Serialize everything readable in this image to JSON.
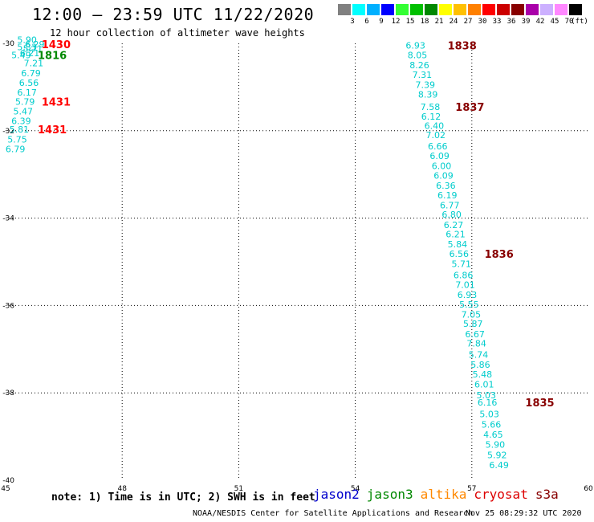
{
  "title": "12:00 – 23:59 UTC 11/22/2020",
  "subtitle": "12 hour collection of altimeter wave heights",
  "legend": {
    "unit": "(ft)",
    "swatches": [
      {
        "color": "#808080",
        "label": "3"
      },
      {
        "color": "#00ffff",
        "label": "6"
      },
      {
        "color": "#00b0ff",
        "label": "9"
      },
      {
        "color": "#0000ff",
        "label": "12"
      },
      {
        "color": "#33ff33",
        "label": "15"
      },
      {
        "color": "#00c000",
        "label": "18"
      },
      {
        "color": "#008800",
        "label": "21"
      },
      {
        "color": "#ffff00",
        "label": "24"
      },
      {
        "color": "#ffc000",
        "label": "27"
      },
      {
        "color": "#ff8000",
        "label": "30"
      },
      {
        "color": "#ff0000",
        "label": "33"
      },
      {
        "color": "#cc0000",
        "label": "36"
      },
      {
        "color": "#880000",
        "label": "39"
      },
      {
        "color": "#aa00aa",
        "label": "42"
      },
      {
        "color": "#ccb0ff",
        "label": "45"
      },
      {
        "color": "#ff88ff",
        "label": "70"
      },
      {
        "color": "#000000",
        "label": ""
      }
    ]
  },
  "chart_data": {
    "type": "scatter",
    "xlim": [
      45,
      60
    ],
    "ylim": [
      -40,
      -30
    ],
    "x_ticks": [
      "45",
      "48",
      "51",
      "54",
      "57",
      "60"
    ],
    "y_ticks": [
      "-30",
      "-32",
      "-34",
      "-36",
      "-38",
      "-40"
    ],
    "grid": "dotted",
    "series": [
      {
        "color": "#00cccc",
        "points": [
          {
            "x": 45.55,
            "y": -29.92,
            "label": "5.90"
          },
          {
            "x": 45.55,
            "y": -30.08,
            "label": "5.33"
          },
          {
            "x": 45.75,
            "y": -30.02,
            "label": "6.29"
          },
          {
            "x": 45.7,
            "y": -30.12,
            "label": "5.71"
          },
          {
            "x": 45.4,
            "y": -30.27,
            "label": "5.49"
          },
          {
            "x": 45.62,
            "y": -30.22,
            "label": "6.21"
          },
          {
            "x": 45.72,
            "y": -30.45,
            "label": "7.21"
          },
          {
            "x": 45.65,
            "y": -30.68,
            "label": "6.79"
          },
          {
            "x": 45.6,
            "y": -30.9,
            "label": "6.56"
          },
          {
            "x": 45.55,
            "y": -31.12,
            "label": "6.17"
          },
          {
            "x": 45.5,
            "y": -31.33,
            "label": "5.79"
          },
          {
            "x": 45.45,
            "y": -31.55,
            "label": "5.47"
          },
          {
            "x": 45.4,
            "y": -31.77,
            "label": "6.39"
          },
          {
            "x": 45.35,
            "y": -31.97,
            "label": "5.81"
          },
          {
            "x": 45.3,
            "y": -32.2,
            "label": "5.75"
          },
          {
            "x": 45.25,
            "y": -32.42,
            "label": "6.79"
          },
          {
            "x": 55.55,
            "y": -30.05,
            "label": "6.93"
          },
          {
            "x": 55.6,
            "y": -30.27,
            "label": "8.05"
          },
          {
            "x": 55.65,
            "y": -30.5,
            "label": "8.26"
          },
          {
            "x": 55.72,
            "y": -30.72,
            "label": "7.31"
          },
          {
            "x": 55.8,
            "y": -30.95,
            "label": "7.39"
          },
          {
            "x": 55.87,
            "y": -31.17,
            "label": "8.39"
          },
          {
            "x": 55.93,
            "y": -31.45,
            "label": "7.58"
          },
          {
            "x": 55.95,
            "y": -31.67,
            "label": "6.12"
          },
          {
            "x": 56.03,
            "y": -31.88,
            "label": "6.40"
          },
          {
            "x": 56.07,
            "y": -32.1,
            "label": "7.02"
          },
          {
            "x": 56.12,
            "y": -32.35,
            "label": "6.66"
          },
          {
            "x": 56.17,
            "y": -32.57,
            "label": "6.09"
          },
          {
            "x": 56.22,
            "y": -32.8,
            "label": "6.00"
          },
          {
            "x": 56.27,
            "y": -33.02,
            "label": "6.09"
          },
          {
            "x": 56.33,
            "y": -33.25,
            "label": "6.36"
          },
          {
            "x": 56.37,
            "y": -33.47,
            "label": "6.19"
          },
          {
            "x": 56.43,
            "y": -33.7,
            "label": "6.77"
          },
          {
            "x": 56.48,
            "y": -33.92,
            "label": "6.80"
          },
          {
            "x": 56.53,
            "y": -34.15,
            "label": "6.27"
          },
          {
            "x": 56.58,
            "y": -34.37,
            "label": "6.21"
          },
          {
            "x": 56.63,
            "y": -34.6,
            "label": "5.84"
          },
          {
            "x": 56.67,
            "y": -34.82,
            "label": "6.56"
          },
          {
            "x": 56.73,
            "y": -35.05,
            "label": "5.71"
          },
          {
            "x": 56.78,
            "y": -35.3,
            "label": "6.86"
          },
          {
            "x": 56.83,
            "y": -35.52,
            "label": "7.01"
          },
          {
            "x": 56.88,
            "y": -35.75,
            "label": "6.93"
          },
          {
            "x": 56.93,
            "y": -35.97,
            "label": "5.55"
          },
          {
            "x": 56.98,
            "y": -36.2,
            "label": "7.05"
          },
          {
            "x": 57.03,
            "y": -36.42,
            "label": "5.87"
          },
          {
            "x": 57.08,
            "y": -36.65,
            "label": "6.67"
          },
          {
            "x": 57.12,
            "y": -36.87,
            "label": "7.84"
          },
          {
            "x": 57.17,
            "y": -37.12,
            "label": "5.74"
          },
          {
            "x": 57.22,
            "y": -37.35,
            "label": "5.86"
          },
          {
            "x": 57.27,
            "y": -37.57,
            "label": "5.48"
          },
          {
            "x": 57.32,
            "y": -37.8,
            "label": "6.01"
          },
          {
            "x": 57.37,
            "y": -38.05,
            "label": "5.03"
          },
          {
            "x": 57.4,
            "y": -38.22,
            "label": "6.16"
          },
          {
            "x": 57.45,
            "y": -38.48,
            "label": "5.03"
          },
          {
            "x": 57.5,
            "y": -38.72,
            "label": "5.66"
          },
          {
            "x": 57.55,
            "y": -38.95,
            "label": "4.65"
          },
          {
            "x": 57.6,
            "y": -39.18,
            "label": "5.90"
          },
          {
            "x": 57.65,
            "y": -39.42,
            "label": "5.92"
          },
          {
            "x": 57.7,
            "y": -39.65,
            "label": "6.49"
          }
        ]
      }
    ],
    "time_labels": [
      {
        "x": 46.3,
        "y": -30.02,
        "label": "1430",
        "color": "#ff0000"
      },
      {
        "x": 46.2,
        "y": -30.27,
        "label": "1816",
        "color": "#008800"
      },
      {
        "x": 46.3,
        "y": -31.33,
        "label": "1431",
        "color": "#ff0000"
      },
      {
        "x": 46.2,
        "y": -31.97,
        "label": "1431",
        "color": "#ff0000"
      },
      {
        "x": 56.75,
        "y": -30.05,
        "label": "1838",
        "color": "#880000"
      },
      {
        "x": 56.95,
        "y": -31.45,
        "label": "1837",
        "color": "#880000"
      },
      {
        "x": 57.7,
        "y": -34.82,
        "label": "1836",
        "color": "#880000"
      },
      {
        "x": 58.75,
        "y": -38.22,
        "label": "1835",
        "color": "#880000"
      }
    ]
  },
  "footer": {
    "note": "note:  1) Time is in UTC;  2) SWH is in feet",
    "satellites": [
      {
        "name": "jason2",
        "color": "#0000cc"
      },
      {
        "name": "jason3",
        "color": "#008800"
      },
      {
        "name": "altika",
        "color": "#ff8800"
      },
      {
        "name": "cryosat",
        "color": "#dd0000"
      },
      {
        "name": "s3a",
        "color": "#880000"
      }
    ],
    "credit": "NOAA/NESDIS Center for Satellite Applications and Research",
    "timestamp": "Nov 25 08:29:32 UTC 2020"
  }
}
